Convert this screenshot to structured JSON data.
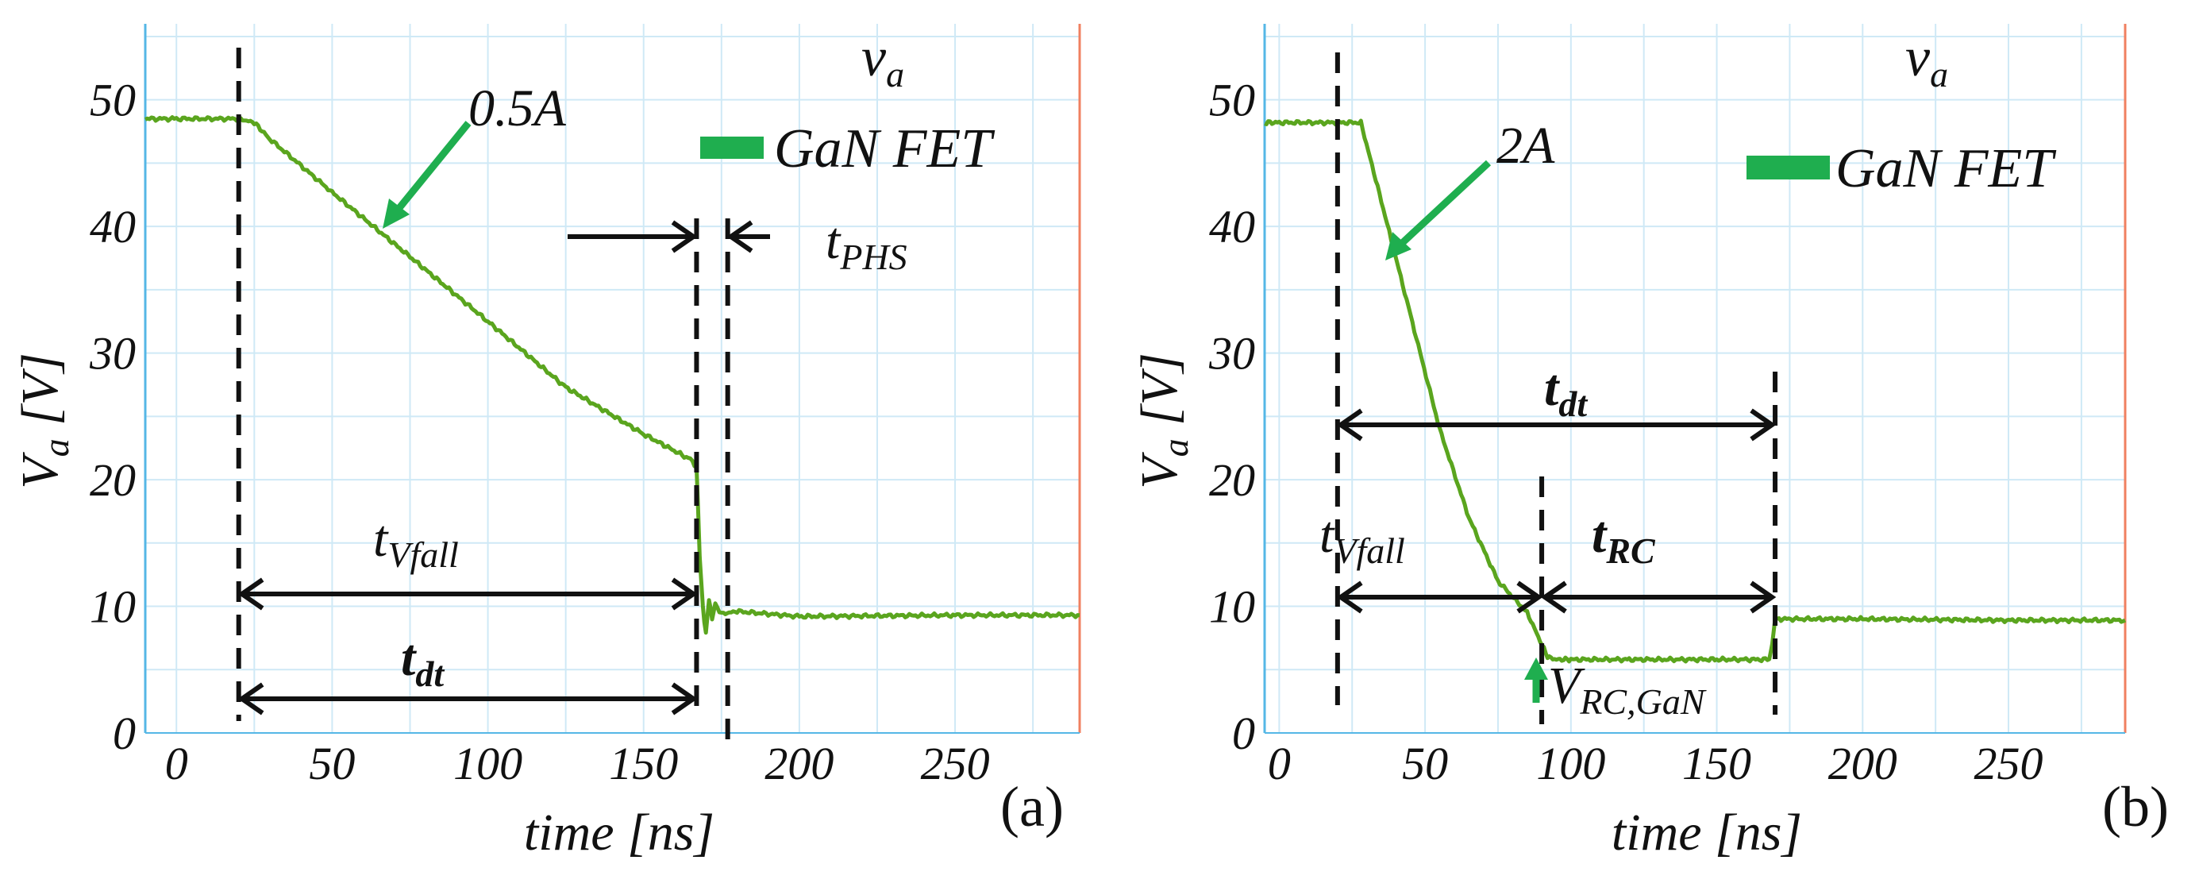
{
  "chart_data": [
    {
      "type": "line",
      "panel_label": "(a)",
      "xlabel": "time [ns]",
      "ylabel": "V_a [V]",
      "xlim": [
        -10,
        290
      ],
      "ylim": [
        0,
        56
      ],
      "xticks": [
        0,
        50,
        100,
        150,
        200,
        250
      ],
      "yticks": [
        0,
        10,
        20,
        30,
        40,
        50
      ],
      "legend": {
        "title": "v",
        "title_sub": "a",
        "entry": "GaN FET",
        "color": "#1fae4f"
      },
      "series": [
        {
          "name": "GaN FET",
          "color": "#5aa51e",
          "x": [
            -10,
            0,
            20,
            25,
            30,
            50,
            75,
            100,
            125,
            150,
            165,
            167,
            168,
            169,
            170,
            171,
            172,
            173,
            175,
            180,
            200,
            250,
            290
          ],
          "y": [
            48.5,
            48.5,
            48.5,
            48.2,
            46.9,
            42.7,
            37.6,
            32.5,
            27.3,
            23.6,
            21.6,
            21.0,
            14.0,
            10.0,
            7.8,
            10.6,
            9.0,
            10.2,
            9.4,
            9.6,
            9.2,
            9.3,
            9.3
          ]
        }
      ],
      "annotations": {
        "current": "0.5A",
        "t_phs": {
          "main": "t",
          "sub": "PHS"
        },
        "t_vfall": {
          "main": "t",
          "sub": "Vfall"
        },
        "t_dt": {
          "main": "t",
          "sub": "dt"
        }
      }
    },
    {
      "type": "line",
      "panel_label": "(b)",
      "xlabel": "time [ns]",
      "ylabel": "V_a [V]",
      "xlim": [
        -5,
        290
      ],
      "ylim": [
        0,
        56
      ],
      "xticks": [
        0,
        50,
        100,
        150,
        200,
        250
      ],
      "yticks": [
        0,
        10,
        20,
        30,
        40,
        50
      ],
      "legend": {
        "title": "v",
        "title_sub": "a",
        "entry": "GaN FET",
        "color": "#1fae4f"
      },
      "series": [
        {
          "name": "GaN FET",
          "color": "#5aa51e",
          "x": [
            -5,
            0,
            20,
            28,
            35,
            45,
            55,
            65,
            75,
            85,
            92,
            95,
            100,
            120,
            150,
            168,
            169,
            170,
            172,
            200,
            250,
            290
          ],
          "y": [
            48.2,
            48.2,
            48.2,
            48.2,
            42.0,
            33.0,
            24.0,
            17.0,
            12.0,
            9.5,
            6.0,
            5.8,
            5.8,
            5.8,
            5.8,
            5.8,
            7.0,
            9.0,
            9.0,
            9.0,
            8.9,
            8.9
          ]
        }
      ],
      "annotations": {
        "current": "2A",
        "t_dt": {
          "main": "t",
          "sub": "dt"
        },
        "t_vfall": {
          "main": "t",
          "sub": "Vfall"
        },
        "t_rc": {
          "main": "t",
          "sub": "RC"
        },
        "v_rc_gan": {
          "main": "V",
          "sub": "RC,GaN"
        }
      }
    }
  ]
}
